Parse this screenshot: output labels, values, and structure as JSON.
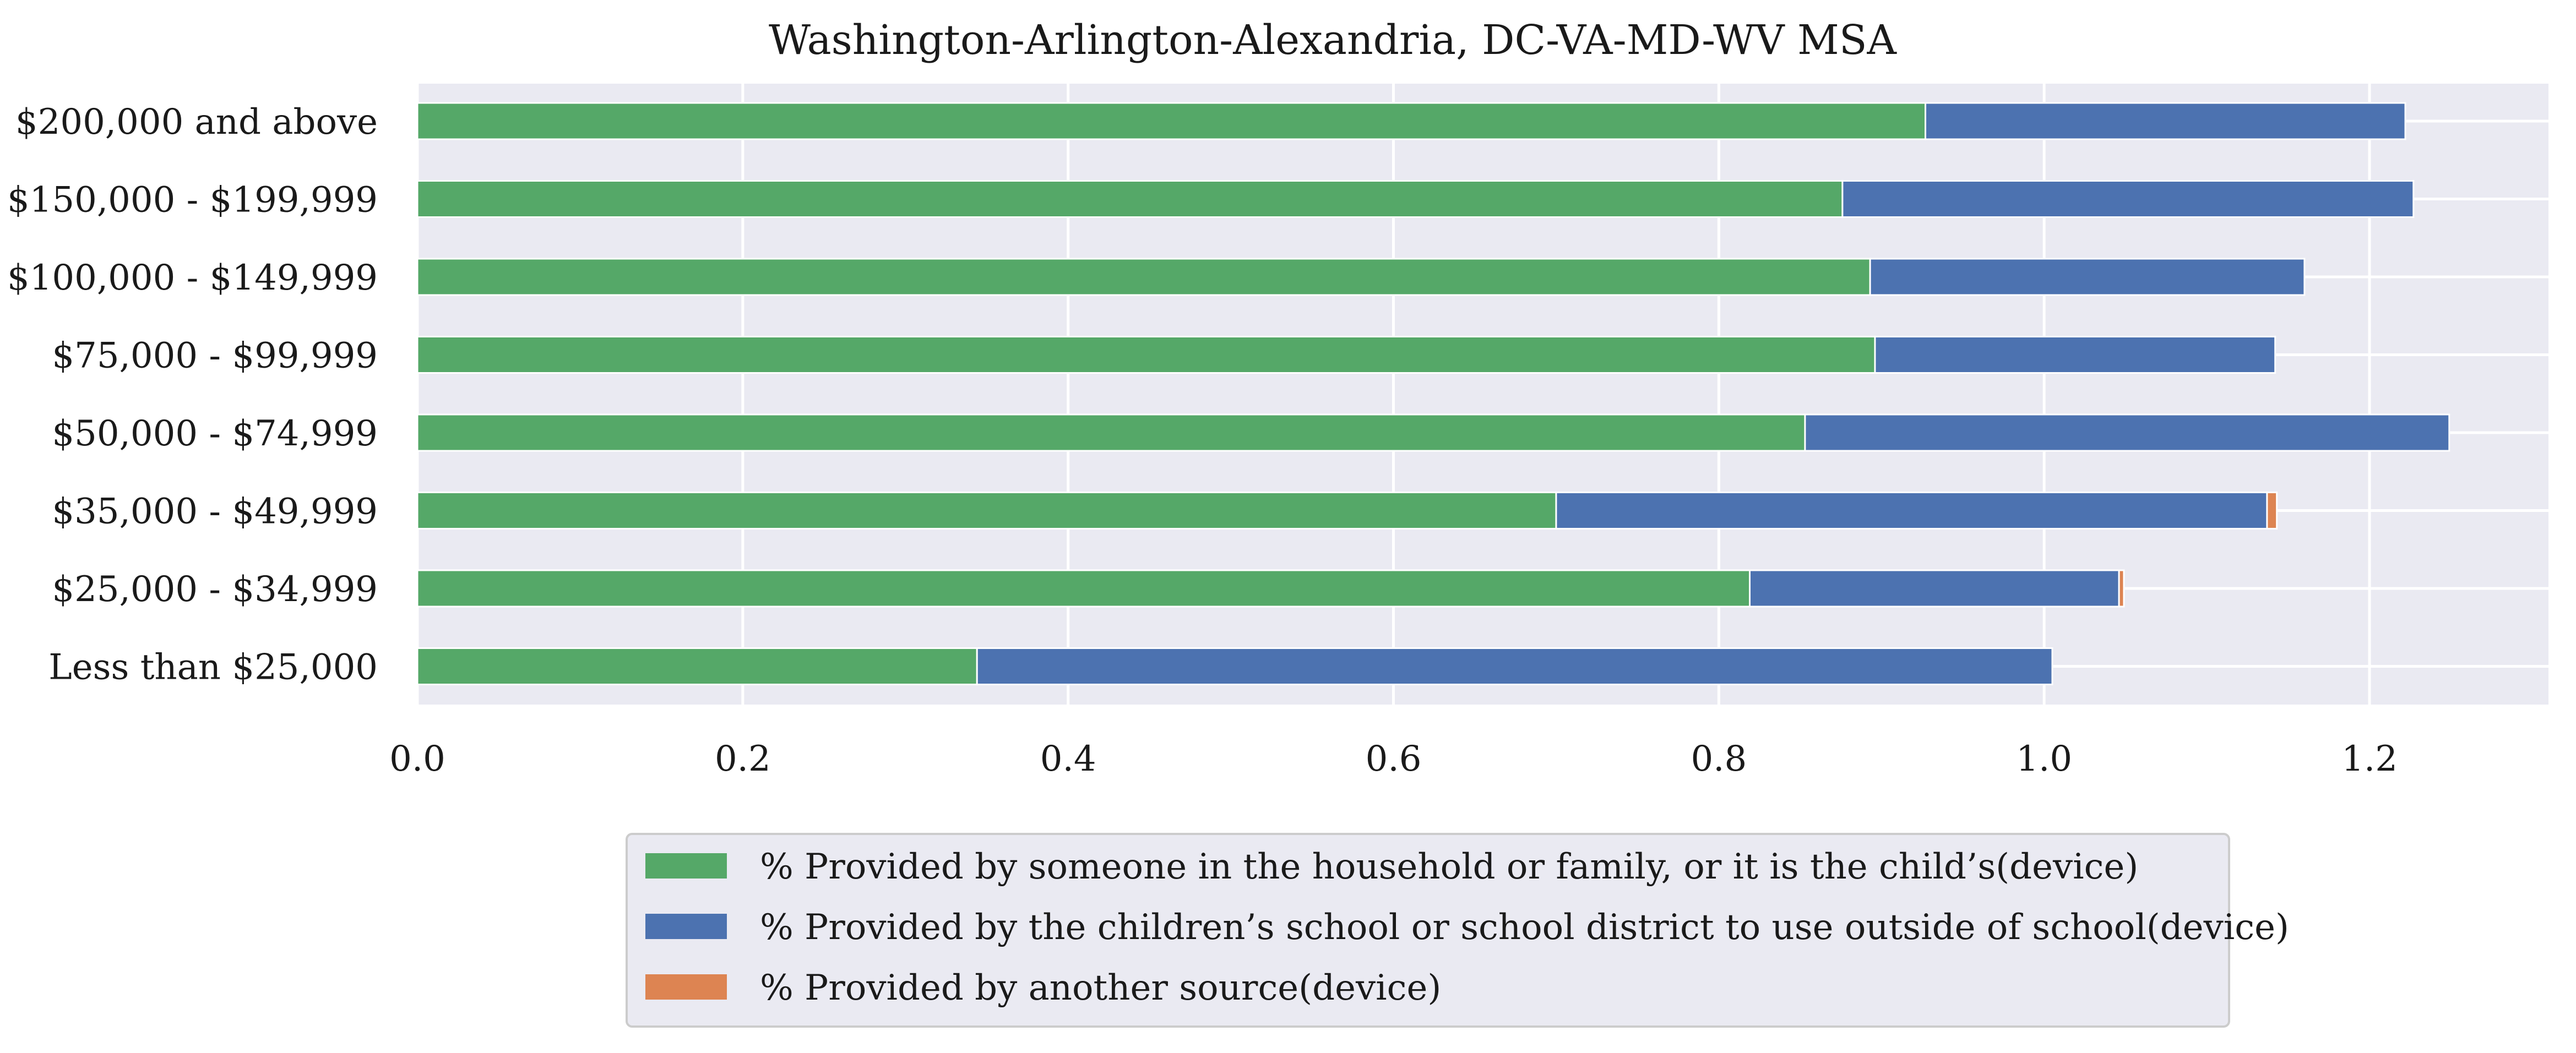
{
  "chart_data": {
    "type": "bar",
    "orientation": "horizontal",
    "stacked": true,
    "title": "Washington-Arlington-Alexandria, DC-VA-MD-WV MSA",
    "xlabel": "",
    "ylabel": "",
    "xlim": [
      0.0,
      1.31
    ],
    "xticks": [
      "0.0",
      "0.2",
      "0.4",
      "0.6",
      "0.8",
      "1.0",
      "1.2"
    ],
    "grid": true,
    "legend_position": "bottom-center",
    "categories": [
      "$200,000 and above",
      "$150,000 - $199,999",
      "$100,000 - $149,999",
      "$75,000 - $99,999",
      "$50,000 - $74,999",
      "$35,000 - $49,999",
      "$25,000 - $34,999",
      "Less than $25,000"
    ],
    "series": [
      {
        "name": "% Provided by someone in the household or family, or it is the child’s(device)",
        "color": "#55a868",
        "values": [
          0.927,
          0.876,
          0.893,
          0.896,
          0.853,
          0.7,
          0.819,
          0.344
        ]
      },
      {
        "name": "% Provided by the children’s school or school district to use outside of school(device)",
        "color": "#4c72b0",
        "values": [
          0.295,
          0.351,
          0.267,
          0.246,
          0.396,
          0.437,
          0.227,
          0.661
        ]
      },
      {
        "name": "% Provided by another source(device)",
        "color": "#dd8452",
        "values": [
          0.0,
          0.0,
          0.0,
          0.0,
          0.0,
          0.006,
          0.003,
          0.0
        ]
      }
    ]
  },
  "colors": {
    "plot_background": "#eaeaf2",
    "grid": "#ffffff",
    "legend_background": "#eaeaf2",
    "legend_border": "#cccccc"
  }
}
